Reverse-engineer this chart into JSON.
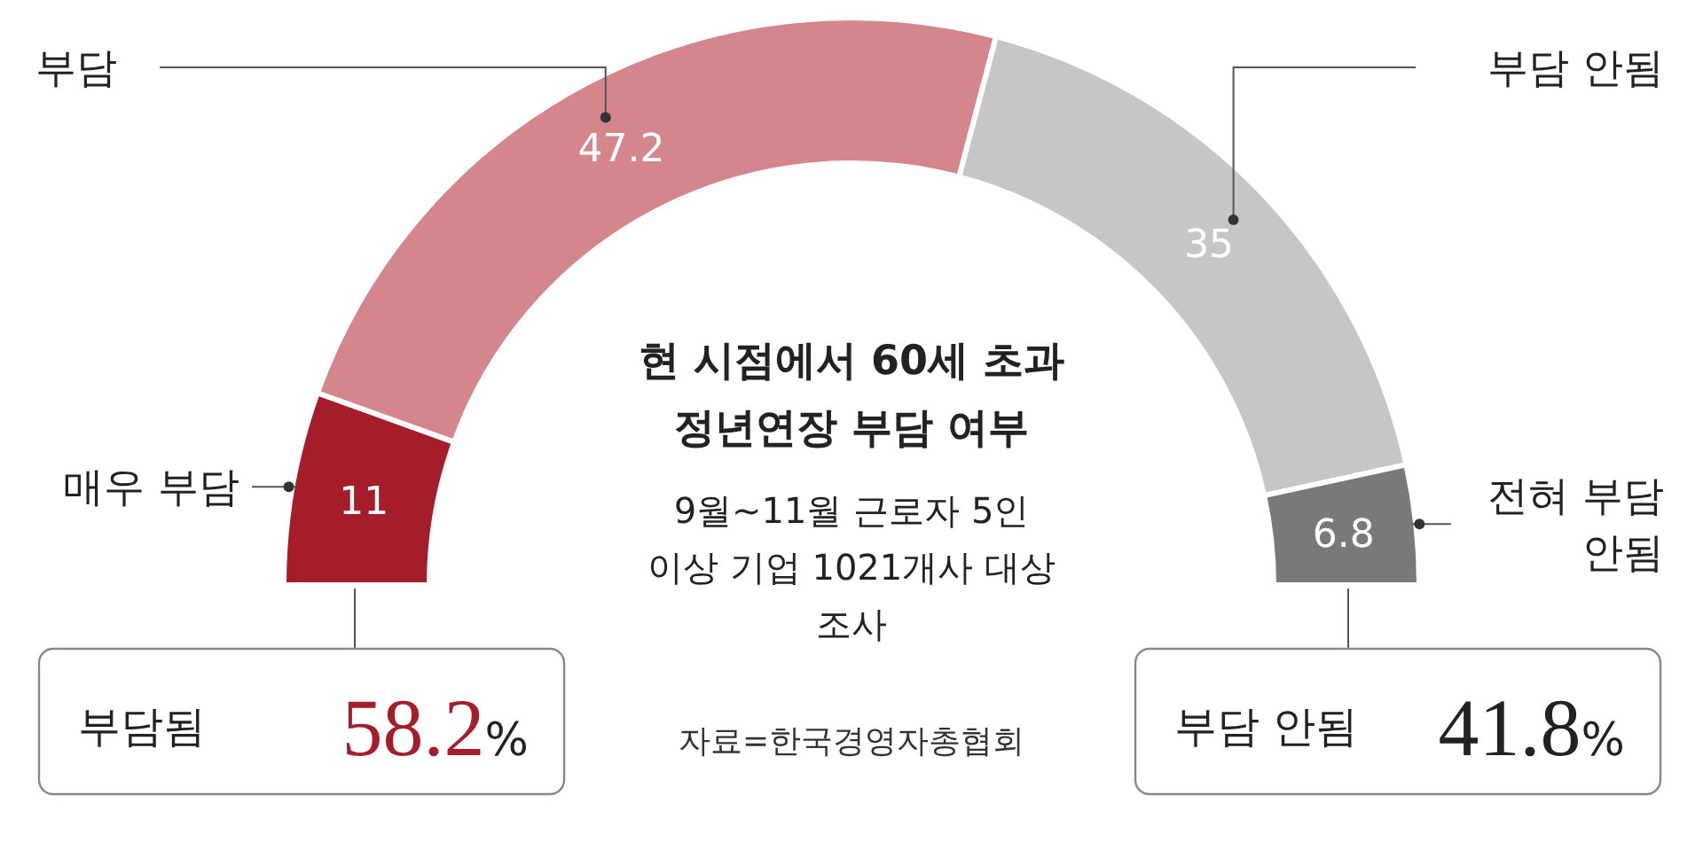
{
  "chart_data": {
    "type": "donut",
    "title": "현 시점에서 60세 초과 정년연장 부담 여부",
    "subtitle": "9월~11월 근로자 5인 이상 기업 1021개사 대상 조사",
    "categories": [
      "매우 부담",
      "부담",
      "부담 안됨",
      "전혀 부담 안됨"
    ],
    "values": [
      11,
      47.2,
      35,
      6.8
    ],
    "colors": [
      "#a51d2b",
      "#d4868c",
      "#c6c6c6",
      "#797979"
    ],
    "data_labels": true,
    "annotations": [
      "부담됨",
      "58.2%",
      "부담 안됨",
      "41.8%",
      "자료=한국경영자총협회"
    ]
  }
}
